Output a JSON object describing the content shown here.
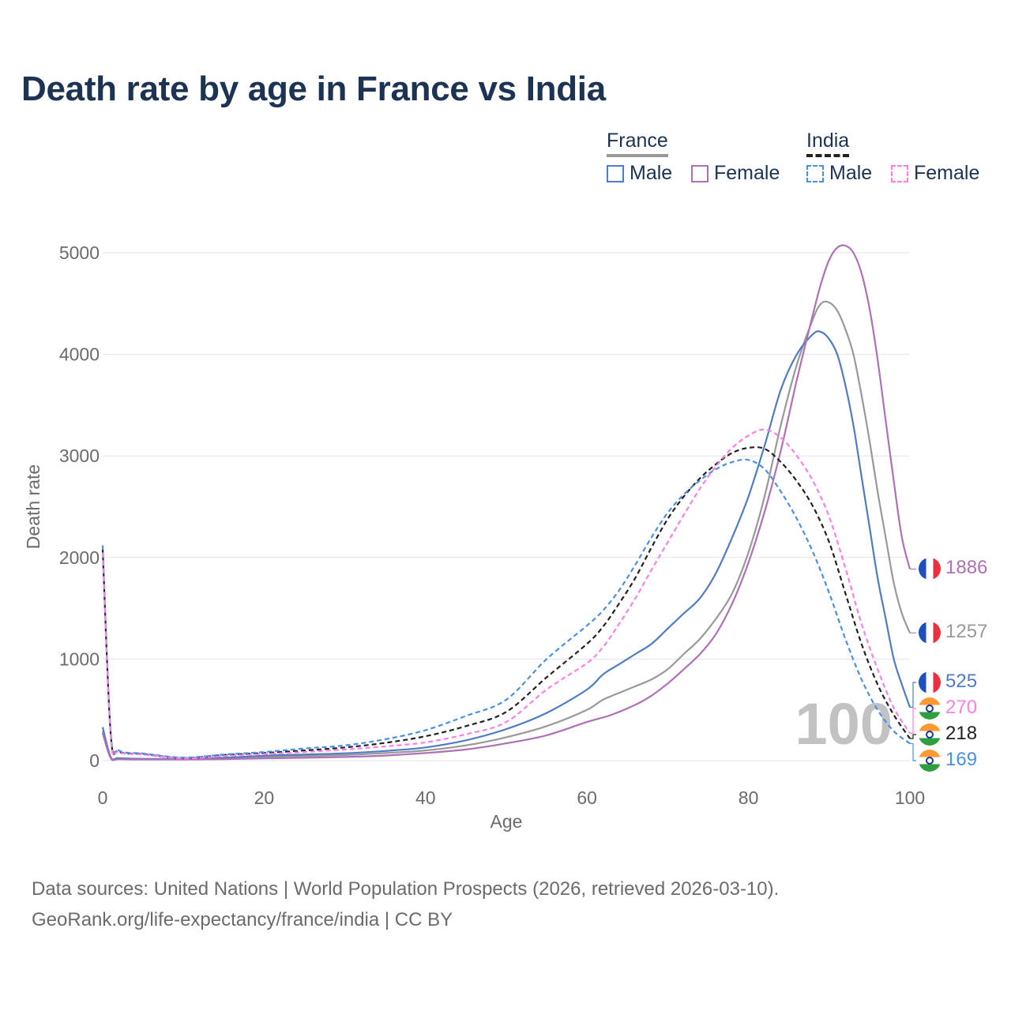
{
  "title": "Death rate by age in France vs India",
  "legend": {
    "groups": [
      {
        "name": "France",
        "line_color": "#999999",
        "line_style": "solid",
        "items": [
          {
            "label": "Male",
            "color": "#4e7dc4",
            "style": "solid"
          },
          {
            "label": "Female",
            "color": "#b070b8",
            "style": "solid"
          }
        ]
      },
      {
        "name": "India",
        "line_color": "#222222",
        "line_style": "dashed",
        "items": [
          {
            "label": "Male",
            "color": "#4a90e8",
            "style": "dashed"
          },
          {
            "label": "Female",
            "color": "#ff7fe6",
            "style": "dashed"
          }
        ]
      }
    ]
  },
  "watermark_year": "100",
  "source": {
    "line1": "Data sources: United Nations | World Population Prospects (2026, retrieved 2026-03-10).",
    "line2": "GeoRank.org/life-expectancy/france/india | CC BY"
  },
  "chart_data": {
    "type": "line",
    "title": "Death rate by age in France vs India",
    "xlabel": "Age",
    "ylabel": "Death rate",
    "xlim": [
      0,
      100
    ],
    "ylim": [
      0,
      5000
    ],
    "xticks": [
      0,
      20,
      40,
      60,
      80,
      100
    ],
    "yticks": [
      0,
      1000,
      2000,
      3000,
      4000,
      5000
    ],
    "grid": true,
    "series": [
      {
        "name": "France Total",
        "country": "France",
        "sex": "Total",
        "color": "#999999",
        "dashed": false,
        "end_value": 1257,
        "points": [
          [
            0,
            290
          ],
          [
            1,
            30
          ],
          [
            2,
            20
          ],
          [
            5,
            15
          ],
          [
            10,
            15
          ],
          [
            15,
            20
          ],
          [
            20,
            35
          ],
          [
            25,
            45
          ],
          [
            30,
            55
          ],
          [
            35,
            75
          ],
          [
            40,
            100
          ],
          [
            45,
            150
          ],
          [
            50,
            230
          ],
          [
            55,
            340
          ],
          [
            60,
            500
          ],
          [
            62,
            600
          ],
          [
            65,
            700
          ],
          [
            68,
            800
          ],
          [
            70,
            900
          ],
          [
            72,
            1050
          ],
          [
            74,
            1200
          ],
          [
            76,
            1400
          ],
          [
            78,
            1650
          ],
          [
            80,
            2050
          ],
          [
            82,
            2600
          ],
          [
            84,
            3300
          ],
          [
            86,
            3900
          ],
          [
            88,
            4350
          ],
          [
            89,
            4500
          ],
          [
            90,
            4510
          ],
          [
            91,
            4430
          ],
          [
            92,
            4250
          ],
          [
            93,
            4000
          ],
          [
            94,
            3600
          ],
          [
            95,
            3150
          ],
          [
            96,
            2650
          ],
          [
            97,
            2200
          ],
          [
            98,
            1750
          ],
          [
            99,
            1450
          ],
          [
            100,
            1257
          ]
        ]
      },
      {
        "name": "France Male",
        "country": "France",
        "sex": "Male",
        "color": "#4e7dc4",
        "dashed": false,
        "end_value": 525,
        "points": [
          [
            0,
            330
          ],
          [
            1,
            35
          ],
          [
            2,
            25
          ],
          [
            5,
            18
          ],
          [
            10,
            18
          ],
          [
            15,
            28
          ],
          [
            20,
            48
          ],
          [
            25,
            60
          ],
          [
            30,
            72
          ],
          [
            35,
            95
          ],
          [
            40,
            130
          ],
          [
            45,
            200
          ],
          [
            50,
            310
          ],
          [
            55,
            470
          ],
          [
            60,
            700
          ],
          [
            62,
            850
          ],
          [
            64,
            950
          ],
          [
            66,
            1050
          ],
          [
            68,
            1150
          ],
          [
            70,
            1300
          ],
          [
            72,
            1450
          ],
          [
            74,
            1600
          ],
          [
            76,
            1850
          ],
          [
            78,
            2200
          ],
          [
            80,
            2600
          ],
          [
            82,
            3100
          ],
          [
            84,
            3650
          ],
          [
            86,
            4000
          ],
          [
            88,
            4200
          ],
          [
            89,
            4220
          ],
          [
            90,
            4150
          ],
          [
            91,
            4000
          ],
          [
            92,
            3700
          ],
          [
            93,
            3300
          ],
          [
            94,
            2800
          ],
          [
            95,
            2300
          ],
          [
            96,
            1800
          ],
          [
            97,
            1400
          ],
          [
            98,
            1000
          ],
          [
            99,
            750
          ],
          [
            100,
            525
          ]
        ]
      },
      {
        "name": "France Female",
        "country": "France",
        "sex": "Female",
        "color": "#b070b8",
        "dashed": false,
        "end_value": 1886,
        "points": [
          [
            0,
            270
          ],
          [
            1,
            25
          ],
          [
            2,
            15
          ],
          [
            5,
            12
          ],
          [
            10,
            12
          ],
          [
            15,
            15
          ],
          [
            20,
            22
          ],
          [
            25,
            28
          ],
          [
            30,
            36
          ],
          [
            35,
            50
          ],
          [
            40,
            75
          ],
          [
            45,
            110
          ],
          [
            50,
            170
          ],
          [
            55,
            250
          ],
          [
            60,
            380
          ],
          [
            63,
            450
          ],
          [
            66,
            550
          ],
          [
            68,
            640
          ],
          [
            70,
            760
          ],
          [
            72,
            900
          ],
          [
            74,
            1050
          ],
          [
            76,
            1250
          ],
          [
            78,
            1550
          ],
          [
            80,
            1950
          ],
          [
            82,
            2450
          ],
          [
            84,
            3050
          ],
          [
            86,
            3750
          ],
          [
            88,
            4400
          ],
          [
            89,
            4700
          ],
          [
            90,
            4930
          ],
          [
            91,
            5050
          ],
          [
            92,
            5070
          ],
          [
            93,
            5000
          ],
          [
            94,
            4800
          ],
          [
            95,
            4450
          ],
          [
            96,
            3950
          ],
          [
            97,
            3350
          ],
          [
            98,
            2750
          ],
          [
            99,
            2200
          ],
          [
            100,
            1886
          ]
        ]
      },
      {
        "name": "India Total",
        "country": "India",
        "sex": "Total",
        "color": "#222222",
        "dashed": true,
        "end_value": 218,
        "points": [
          [
            0,
            2080
          ],
          [
            1,
            260
          ],
          [
            2,
            90
          ],
          [
            5,
            65
          ],
          [
            10,
            25
          ],
          [
            15,
            55
          ],
          [
            20,
            75
          ],
          [
            25,
            100
          ],
          [
            30,
            130
          ],
          [
            35,
            175
          ],
          [
            40,
            240
          ],
          [
            45,
            340
          ],
          [
            50,
            480
          ],
          [
            55,
            820
          ],
          [
            60,
            1150
          ],
          [
            62,
            1320
          ],
          [
            64,
            1550
          ],
          [
            66,
            1800
          ],
          [
            68,
            2100
          ],
          [
            70,
            2380
          ],
          [
            72,
            2600
          ],
          [
            74,
            2780
          ],
          [
            76,
            2920
          ],
          [
            78,
            3030
          ],
          [
            80,
            3080
          ],
          [
            82,
            3070
          ],
          [
            84,
            2940
          ],
          [
            86,
            2750
          ],
          [
            88,
            2500
          ],
          [
            90,
            2150
          ],
          [
            92,
            1650
          ],
          [
            94,
            1150
          ],
          [
            96,
            750
          ],
          [
            98,
            450
          ],
          [
            100,
            218
          ]
        ]
      },
      {
        "name": "India Male",
        "country": "India",
        "sex": "Male",
        "color": "#4a90e8",
        "dashed": true,
        "end_value": 169,
        "points": [
          [
            0,
            2120
          ],
          [
            1,
            280
          ],
          [
            2,
            100
          ],
          [
            5,
            70
          ],
          [
            10,
            30
          ],
          [
            15,
            60
          ],
          [
            20,
            85
          ],
          [
            25,
            120
          ],
          [
            30,
            150
          ],
          [
            35,
            210
          ],
          [
            40,
            300
          ],
          [
            45,
            440
          ],
          [
            50,
            600
          ],
          [
            55,
            1000
          ],
          [
            60,
            1330
          ],
          [
            62,
            1480
          ],
          [
            64,
            1680
          ],
          [
            66,
            1930
          ],
          [
            68,
            2200
          ],
          [
            70,
            2440
          ],
          [
            72,
            2620
          ],
          [
            74,
            2760
          ],
          [
            76,
            2870
          ],
          [
            78,
            2940
          ],
          [
            80,
            2960
          ],
          [
            82,
            2870
          ],
          [
            84,
            2650
          ],
          [
            86,
            2380
          ],
          [
            88,
            2050
          ],
          [
            90,
            1650
          ],
          [
            92,
            1200
          ],
          [
            94,
            800
          ],
          [
            96,
            500
          ],
          [
            98,
            290
          ],
          [
            100,
            169
          ]
        ]
      },
      {
        "name": "India Female",
        "country": "India",
        "sex": "Female",
        "color": "#ff7fe6",
        "dashed": true,
        "end_value": 270,
        "points": [
          [
            0,
            2050
          ],
          [
            1,
            240
          ],
          [
            2,
            85
          ],
          [
            5,
            60
          ],
          [
            10,
            22
          ],
          [
            15,
            45
          ],
          [
            20,
            65
          ],
          [
            25,
            85
          ],
          [
            30,
            110
          ],
          [
            35,
            140
          ],
          [
            40,
            180
          ],
          [
            45,
            260
          ],
          [
            50,
            380
          ],
          [
            55,
            700
          ],
          [
            60,
            960
          ],
          [
            62,
            1120
          ],
          [
            64,
            1350
          ],
          [
            66,
            1600
          ],
          [
            68,
            1880
          ],
          [
            70,
            2150
          ],
          [
            72,
            2420
          ],
          [
            74,
            2680
          ],
          [
            76,
            2900
          ],
          [
            78,
            3080
          ],
          [
            80,
            3200
          ],
          [
            82,
            3260
          ],
          [
            84,
            3180
          ],
          [
            86,
            3000
          ],
          [
            88,
            2750
          ],
          [
            90,
            2400
          ],
          [
            92,
            1900
          ],
          [
            94,
            1350
          ],
          [
            96,
            900
          ],
          [
            98,
            520
          ],
          [
            100,
            270
          ]
        ]
      }
    ]
  }
}
